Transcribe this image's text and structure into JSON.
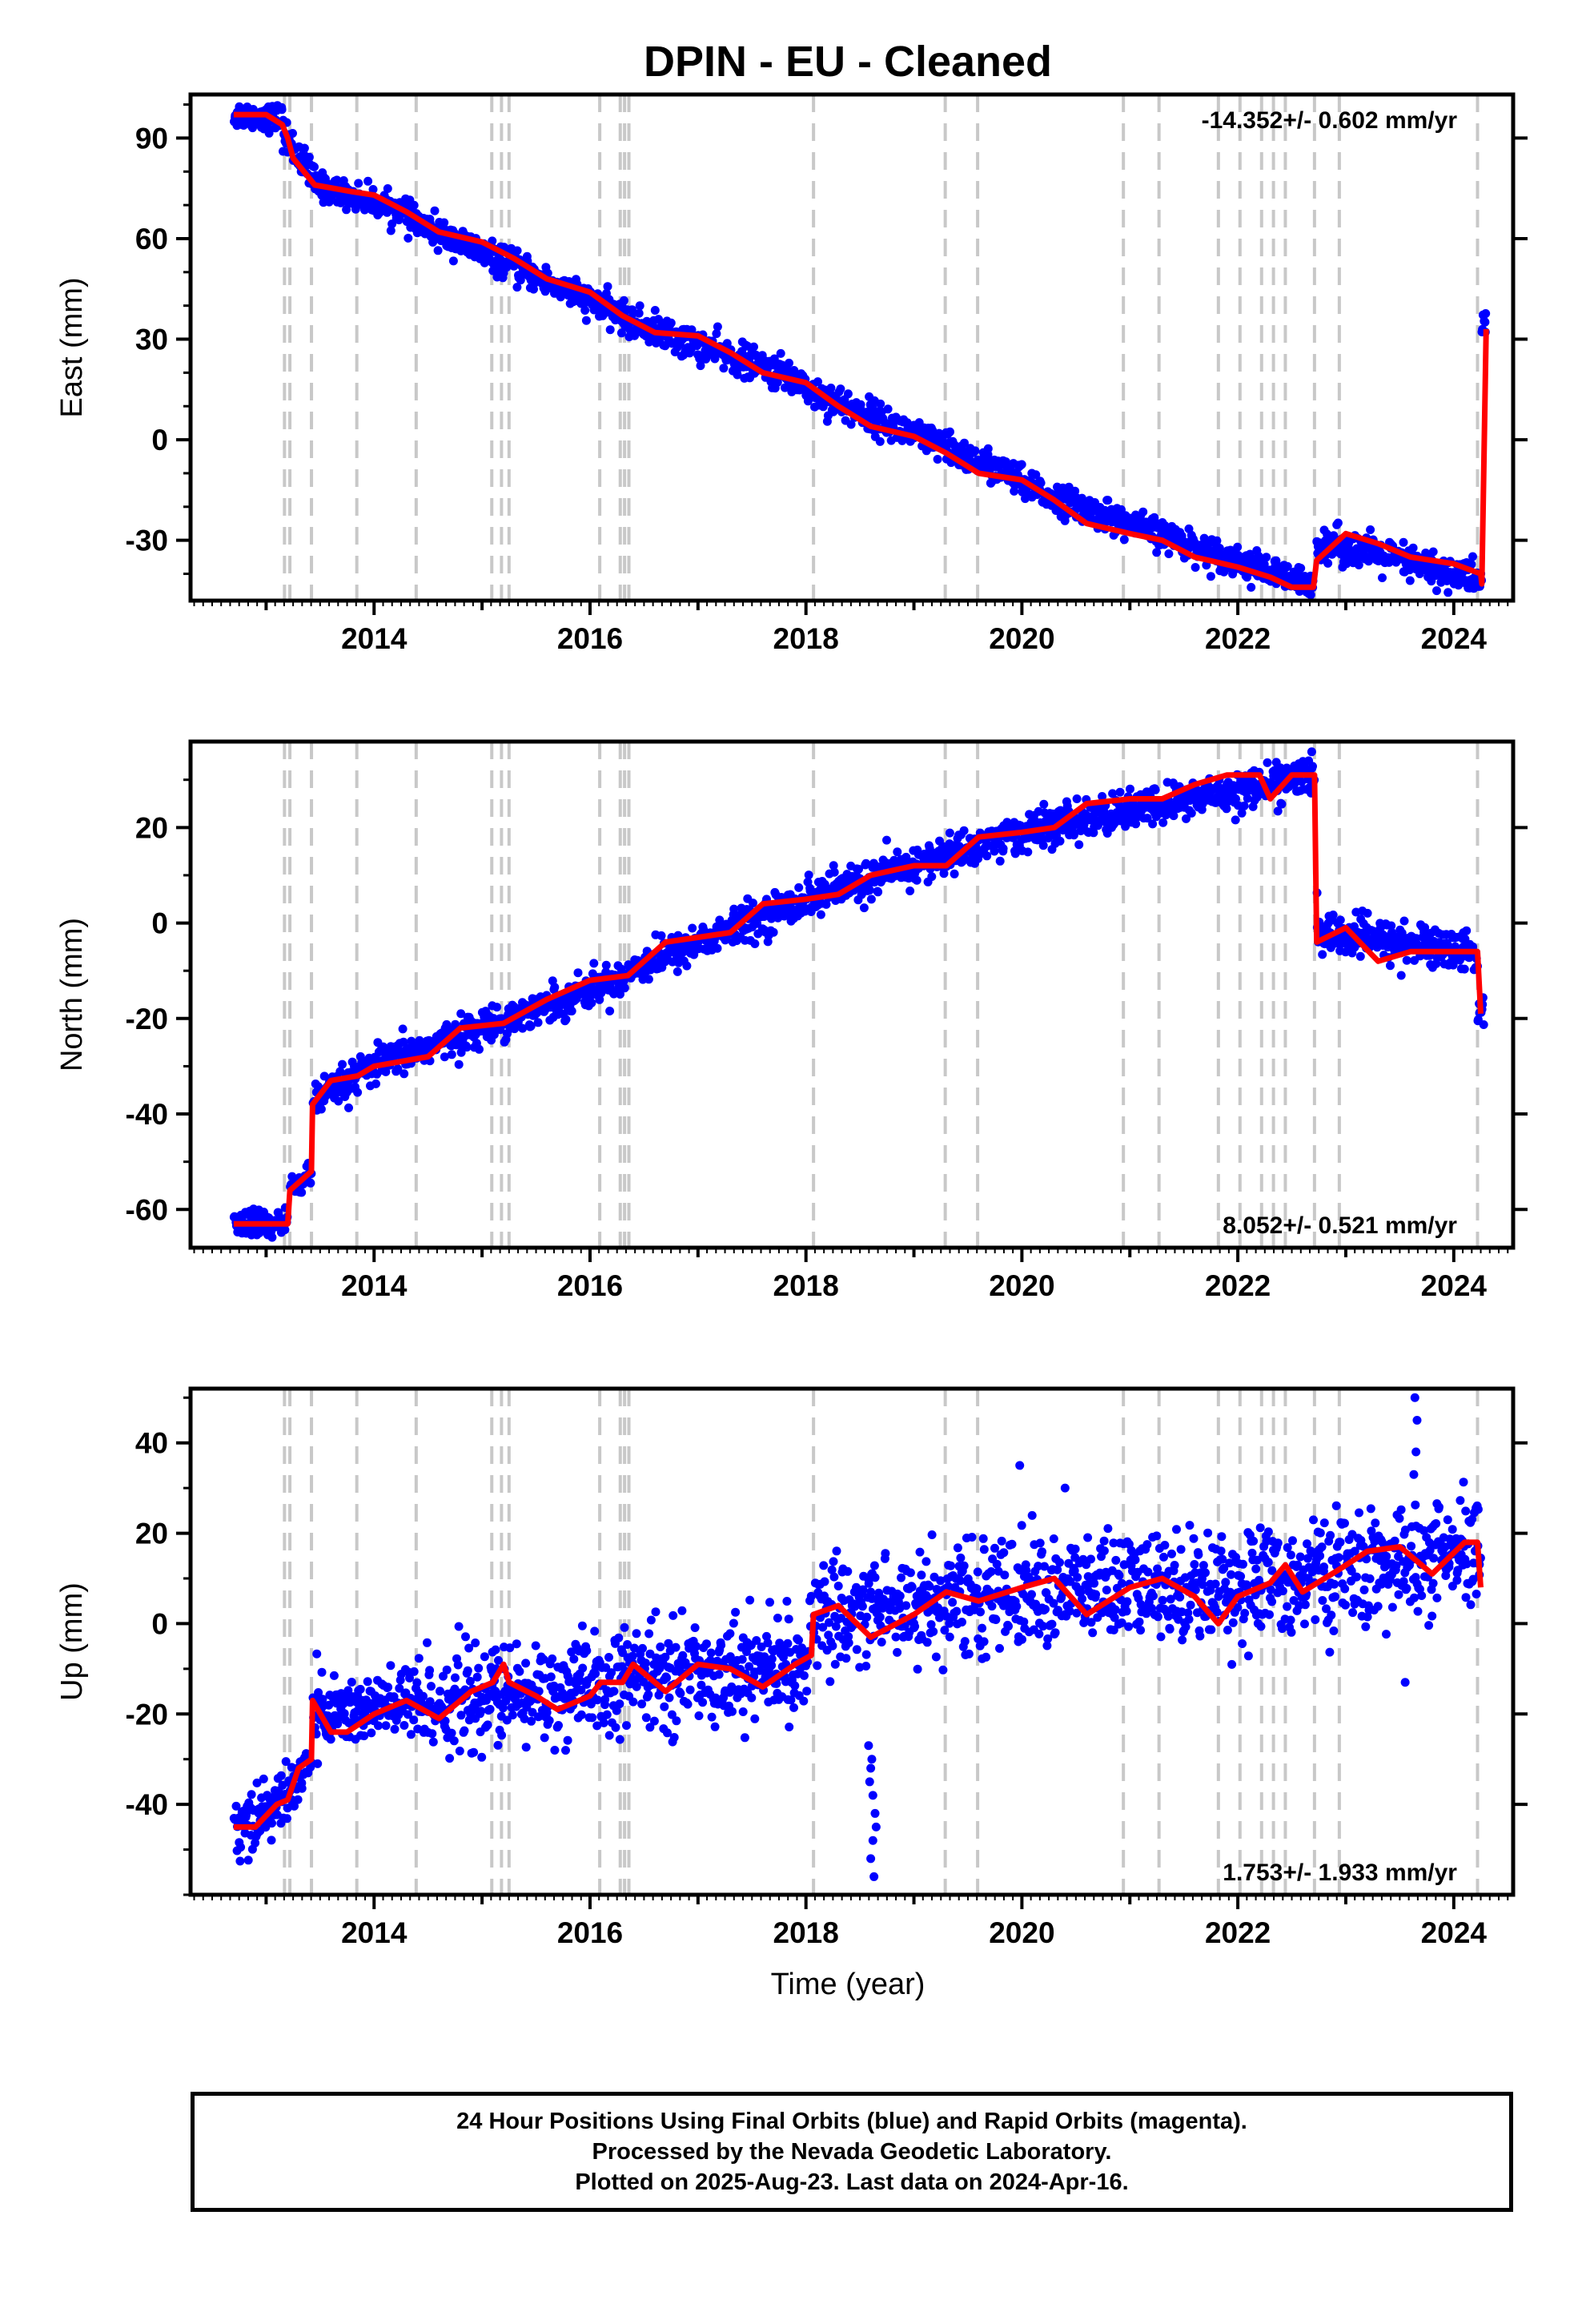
{
  "title": "DPIN  - EU - Cleaned",
  "xlabel": "Time (year)",
  "footer": {
    "line1": "24 Hour Positions Using Final Orbits (blue) and Rapid Orbits (magenta).",
    "line2": "Processed by the Nevada Geodetic Laboratory.",
    "line3": "Plotted on 2025-Aug-23. Last data on 2024-Apr-16."
  },
  "colors": {
    "observations": "#0000ff",
    "model": "#ff0000",
    "steps": "#c8c8c8"
  },
  "chart_data": [
    {
      "type": "scatter",
      "ylabel": "East (mm)",
      "rate_label": "-14.352+/- 0.602 mm/yr",
      "rate_label_position": "top-right",
      "xlim": [
        2012.3,
        2024.55
      ],
      "ylim": [
        -48,
        103
      ],
      "yticks": [
        -30,
        0,
        30,
        60,
        90
      ],
      "xticks": [
        2014,
        2016,
        2018,
        2020,
        2022,
        2024
      ],
      "step_epochs": [
        2013.17,
        2013.22,
        2013.42,
        2013.84,
        2014.39,
        2015.09,
        2015.18,
        2015.25,
        2016.09,
        2016.28,
        2016.32,
        2016.36,
        2018.07,
        2019.29,
        2019.59,
        2020.94,
        2021.27,
        2021.82,
        2022.02,
        2022.22,
        2022.33,
        2022.44,
        2022.71,
        2022.94,
        2024.22
      ],
      "model_line": {
        "x": [
          2012.7,
          2013.0,
          2013.15,
          2013.2,
          2013.25,
          2013.45,
          2013.8,
          2014.0,
          2014.3,
          2014.6,
          2015.0,
          2015.3,
          2015.6,
          2016.0,
          2016.3,
          2016.6,
          2017.0,
          2017.3,
          2017.6,
          2018.0,
          2018.3,
          2018.6,
          2019.0,
          2019.3,
          2019.6,
          2020.0,
          2020.3,
          2020.6,
          2021.0,
          2021.3,
          2021.6,
          2022.0,
          2022.3,
          2022.5,
          2022.7,
          2022.73,
          2023.0,
          2023.3,
          2023.6,
          2024.0,
          2024.25,
          2024.26,
          2024.3
        ],
        "y": [
          97,
          97,
          94,
          90,
          84,
          76,
          74,
          73,
          68,
          62,
          59,
          54,
          48,
          44,
          37,
          32,
          31,
          26,
          20,
          17,
          10,
          4,
          1,
          -4,
          -10,
          -12,
          -18,
          -25,
          -28,
          -30,
          -35,
          -38,
          -41,
          -44,
          -44,
          -36,
          -28,
          -31,
          -35,
          -37,
          -40,
          -43,
          33
        ]
      },
      "observations": {
        "segments": [
          {
            "x_start": 2012.7,
            "x_end": 2013.15,
            "y_start": 97,
            "y_end": 96,
            "scatter": 2.0
          },
          {
            "x_start": 2013.15,
            "x_end": 2013.45,
            "y_start": 92,
            "y_end": 77,
            "scatter": 2.5
          },
          {
            "x_start": 2013.45,
            "x_end": 2014.3,
            "y_start": 76,
            "y_end": 68,
            "scatter": 2.0
          },
          {
            "x_start": 2014.3,
            "x_end": 2016.3,
            "y_start": 66,
            "y_end": 37,
            "scatter": 2.2
          },
          {
            "x_start": 2016.3,
            "x_end": 2018.0,
            "y_start": 36,
            "y_end": 17,
            "scatter": 2.4
          },
          {
            "x_start": 2018.0,
            "x_end": 2020.0,
            "y_start": 15,
            "y_end": -12,
            "scatter": 2.4
          },
          {
            "x_start": 2020.0,
            "x_end": 2022.7,
            "y_start": -14,
            "y_end": -44,
            "scatter": 2.2
          },
          {
            "x_start": 2022.73,
            "x_end": 2024.26,
            "y_start": -30,
            "y_end": -42,
            "scatter": 2.6
          },
          {
            "x_start": 2024.26,
            "x_end": 2024.3,
            "y_start": 33,
            "y_end": 37,
            "scatter": 2.0
          }
        ]
      }
    },
    {
      "type": "scatter",
      "ylabel": "North (mm)",
      "rate_label": "8.052+/- 0.521 mm/yr",
      "rate_label_position": "bottom-right",
      "xlim": [
        2012.3,
        2024.55
      ],
      "ylim": [
        -68,
        38
      ],
      "yticks": [
        -60,
        -40,
        -20,
        0,
        20
      ],
      "xticks": [
        2014,
        2016,
        2018,
        2020,
        2022,
        2024
      ],
      "step_epochs": [
        2013.17,
        2013.22,
        2013.42,
        2013.84,
        2014.39,
        2015.09,
        2015.18,
        2015.25,
        2016.09,
        2016.28,
        2016.32,
        2016.36,
        2018.07,
        2019.29,
        2019.59,
        2020.94,
        2021.27,
        2021.82,
        2022.02,
        2022.22,
        2022.33,
        2022.44,
        2022.71,
        2022.94,
        2024.22
      ],
      "model_line": {
        "x": [
          2012.7,
          2013.2,
          2013.22,
          2013.42,
          2013.43,
          2013.6,
          2013.85,
          2014.0,
          2014.5,
          2014.8,
          2015.2,
          2015.6,
          2016.0,
          2016.35,
          2016.7,
          2017.0,
          2017.3,
          2017.6,
          2018.0,
          2018.3,
          2018.6,
          2019.0,
          2019.3,
          2019.6,
          2020.0,
          2020.3,
          2020.6,
          2021.0,
          2021.3,
          2021.6,
          2021.9,
          2022.2,
          2022.3,
          2022.5,
          2022.71,
          2022.73,
          2023.0,
          2023.3,
          2023.6,
          2024.0,
          2024.22,
          2024.25
        ],
        "y": [
          -63,
          -63,
          -56,
          -52,
          -38,
          -33,
          -32,
          -30,
          -28,
          -22,
          -21,
          -16,
          -12,
          -11,
          -4,
          -3,
          -2,
          4,
          5,
          6,
          10,
          12,
          12,
          18,
          19,
          20,
          25,
          26,
          26,
          29,
          31,
          31,
          26,
          31,
          31,
          -4,
          -1,
          -8,
          -6,
          -6,
          -6,
          -19
        ]
      },
      "observations": {
        "segments": [
          {
            "x_start": 2012.7,
            "x_end": 2013.2,
            "y_start": -63,
            "y_end": -63,
            "scatter": 1.6
          },
          {
            "x_start": 2013.22,
            "x_end": 2013.42,
            "y_start": -56,
            "y_end": -52,
            "scatter": 1.5
          },
          {
            "x_start": 2013.43,
            "x_end": 2014.0,
            "y_start": -38,
            "y_end": -30,
            "scatter": 1.8
          },
          {
            "x_start": 2014.0,
            "x_end": 2016.35,
            "y_start": -30,
            "y_end": -11,
            "scatter": 1.8
          },
          {
            "x_start": 2016.35,
            "x_end": 2018.0,
            "y_start": -10,
            "y_end": 5,
            "scatter": 1.9
          },
          {
            "x_start": 2018.0,
            "x_end": 2020.0,
            "y_start": 5,
            "y_end": 19,
            "scatter": 2.0
          },
          {
            "x_start": 2020.0,
            "x_end": 2022.71,
            "y_start": 19,
            "y_end": 31,
            "scatter": 2.0
          },
          {
            "x_start": 2022.73,
            "x_end": 2024.22,
            "y_start": -2,
            "y_end": -6,
            "scatter": 2.2
          },
          {
            "x_start": 2024.22,
            "x_end": 2024.28,
            "y_start": -19,
            "y_end": -19,
            "scatter": 1.6
          }
        ]
      }
    },
    {
      "type": "scatter",
      "ylabel": "Up (mm)",
      "rate_label": "1.753+/- 1.933 mm/yr",
      "rate_label_position": "bottom-right",
      "xlim": [
        2012.3,
        2024.55
      ],
      "ylim": [
        -60,
        52
      ],
      "yticks": [
        -40,
        -20,
        0,
        20,
        40
      ],
      "xticks": [
        2014,
        2016,
        2018,
        2020,
        2022,
        2024
      ],
      "step_epochs": [
        2013.17,
        2013.22,
        2013.42,
        2013.84,
        2014.39,
        2015.09,
        2015.18,
        2015.25,
        2016.09,
        2016.28,
        2016.32,
        2016.36,
        2018.07,
        2019.29,
        2019.59,
        2020.94,
        2021.27,
        2021.82,
        2022.02,
        2022.22,
        2022.33,
        2022.44,
        2022.71,
        2022.94,
        2024.22
      ],
      "model_line": {
        "x": [
          2012.7,
          2012.9,
          2013.1,
          2013.2,
          2013.3,
          2013.42,
          2013.43,
          2013.6,
          2013.75,
          2014.0,
          2014.3,
          2014.6,
          2014.9,
          2015.1,
          2015.2,
          2015.25,
          2015.5,
          2015.7,
          2016.0,
          2016.1,
          2016.3,
          2016.4,
          2016.7,
          2017.0,
          2017.3,
          2017.6,
          2017.9,
          2018.05,
          2018.07,
          2018.3,
          2018.6,
          2019.0,
          2019.3,
          2019.6,
          2020.0,
          2020.3,
          2020.6,
          2021.0,
          2021.3,
          2021.6,
          2021.82,
          2022.0,
          2022.3,
          2022.44,
          2022.6,
          2022.94,
          2023.2,
          2023.5,
          2023.8,
          2024.1,
          2024.22,
          2024.25
        ],
        "y": [
          -45,
          -45,
          -40,
          -39,
          -32,
          -30,
          -17,
          -24,
          -24,
          -20,
          -17,
          -21,
          -15,
          -13,
          -9,
          -13,
          -16,
          -19,
          -16,
          -13,
          -13,
          -9,
          -15,
          -9,
          -10,
          -14,
          -9,
          -7,
          2,
          4,
          -3,
          2,
          7,
          5,
          8,
          10,
          2,
          8,
          10,
          6,
          0,
          6,
          9,
          13,
          7,
          12,
          16,
          17,
          11,
          18,
          18,
          8
        ]
      },
      "observations": {
        "segments": [
          {
            "x_start": 2012.7,
            "x_end": 2013.2,
            "y_start": -45,
            "y_end": -39,
            "scatter": 3.5
          },
          {
            "x_start": 2013.2,
            "x_end": 2013.42,
            "y_start": -37,
            "y_end": -30,
            "scatter": 3.0
          },
          {
            "x_start": 2013.43,
            "x_end": 2014.3,
            "y_start": -20,
            "y_end": -18,
            "scatter": 4.0
          },
          {
            "x_start": 2014.3,
            "x_end": 2016.3,
            "y_start": -18,
            "y_end": -14,
            "scatter": 5.5
          },
          {
            "x_start": 2016.3,
            "x_end": 2018.05,
            "y_start": -12,
            "y_end": -9,
            "scatter": 5.5
          },
          {
            "x_start": 2018.07,
            "x_end": 2020.0,
            "y_start": 2,
            "y_end": 7,
            "scatter": 6.0
          },
          {
            "x_start": 2020.0,
            "x_end": 2022.44,
            "y_start": 7,
            "y_end": 9,
            "scatter": 6.0
          },
          {
            "x_start": 2022.44,
            "x_end": 2024.25,
            "y_start": 10,
            "y_end": 15,
            "scatter": 6.0
          }
        ],
        "outliers": {
          "x": [
            2018.58,
            2018.6,
            2018.62,
            2018.64,
            2018.6,
            2018.63,
            2018.61,
            2018.59,
            2018.65,
            2018.62,
            2019.98,
            2020.4,
            2023.64,
            2023.66,
            2023.65,
            2023.63,
            2023.55
          ],
          "y": [
            -27,
            -32,
            -38,
            -42,
            -52,
            -56,
            -30,
            -35,
            -45,
            -48,
            35,
            30,
            50,
            45,
            38,
            33,
            -13
          ]
        }
      }
    }
  ]
}
